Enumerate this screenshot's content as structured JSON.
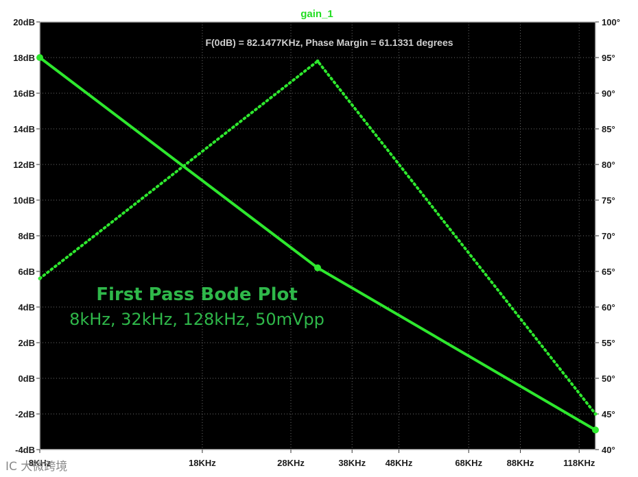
{
  "watermark": "IC 大微跨境",
  "chart_data": {
    "type": "line",
    "title": "gain_1",
    "annotation": "F(0dB) = 82.1477KHz, Phase Margin = 61.1331 degrees",
    "overlay_title": "First Pass Bode Plot",
    "overlay_subtitle": "8kHz, 32kHz, 128kHz, 50mVpp",
    "background": "#000000",
    "grid": true,
    "grid_style": "dotted",
    "x_scale": "log",
    "x_ticks": [
      {
        "value": 8,
        "label": "8KHz"
      },
      {
        "value": 18,
        "label": "18KHz"
      },
      {
        "value": 28,
        "label": "28KHz"
      },
      {
        "value": 38,
        "label": "38KHz"
      },
      {
        "value": 48,
        "label": "48KHz"
      },
      {
        "value": 68,
        "label": "68KHz"
      },
      {
        "value": 88,
        "label": "88KHz"
      },
      {
        "value": 118,
        "label": "118KHz"
      }
    ],
    "xlim": [
      8,
      128
    ],
    "y_left": {
      "ylim": [
        -4,
        20
      ],
      "ticks": [
        "-4dB",
        "-2dB",
        "0dB",
        "2dB",
        "4dB",
        "6dB",
        "8dB",
        "10dB",
        "12dB",
        "14dB",
        "16dB",
        "18dB",
        "20dB"
      ],
      "tick_values": [
        -4,
        -2,
        0,
        2,
        4,
        6,
        8,
        10,
        12,
        14,
        16,
        18,
        20
      ]
    },
    "y_right": {
      "ylim": [
        40,
        100
      ],
      "ticks": [
        "40°",
        "45°",
        "50°",
        "55°",
        "60°",
        "65°",
        "70°",
        "75°",
        "80°",
        "85°",
        "90°",
        "95°",
        "100°"
      ],
      "tick_values": [
        40,
        45,
        50,
        55,
        60,
        65,
        70,
        75,
        80,
        85,
        90,
        95,
        100
      ]
    },
    "series": [
      {
        "axis": "left",
        "style": "solid",
        "color": "#2ee82e",
        "x": [
          8,
          32,
          128
        ],
        "y": [
          18.0,
          6.2,
          -2.9
        ]
      },
      {
        "axis": "right",
        "style": "dotted",
        "color": "#2ee82e",
        "x": [
          8,
          32,
          128
        ],
        "y": [
          64.0,
          94.5,
          45.0
        ]
      }
    ]
  }
}
